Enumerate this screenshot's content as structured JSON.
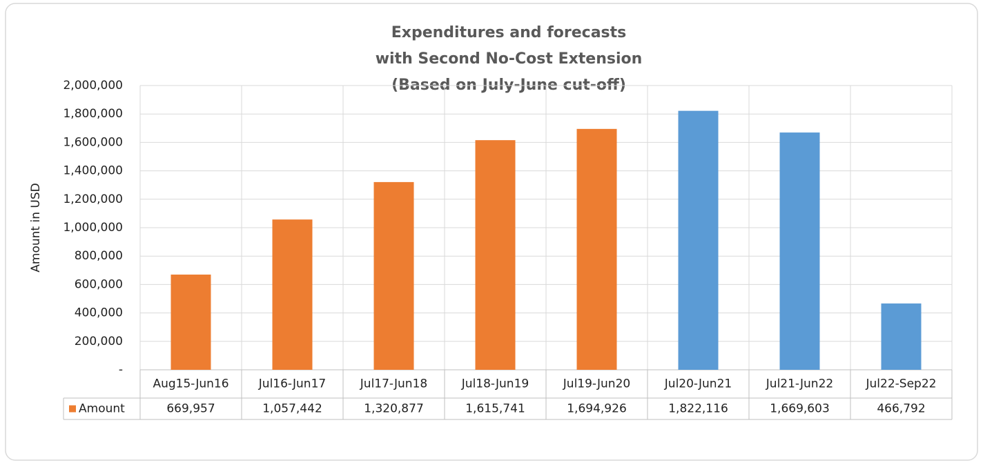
{
  "chart_data": {
    "type": "bar",
    "title": [
      "Expenditures and forecasts",
      "with Second No-Cost Extension",
      "(Based on July-June cut-off)"
    ],
    "y_label": "Amount in USD",
    "categories": [
      "Aug15-Jun16",
      "Jul16-Jun17",
      "Jul17-Jun18",
      "Jul18-Jun19",
      "Jul19-Jun20",
      "Jul20-Jun21",
      "Jul21-Jun22",
      "Jul22-Sep22"
    ],
    "series": [
      {
        "name": "Amount",
        "color": "#ed7d31",
        "values": [
          669957,
          1057442,
          1320877,
          1615741,
          1694926,
          1822116,
          1669603,
          466792
        ],
        "value_labels": [
          "669,957",
          "1,057,442",
          "1,320,877",
          "1,615,741",
          "1,694,926",
          "1,822,116",
          "1,669,603",
          "466,792"
        ],
        "colors": [
          "#ed7d31",
          "#ed7d31",
          "#ed7d31",
          "#ed7d31",
          "#ed7d31",
          "#5b9bd5",
          "#5b9bd5",
          "#5b9bd5"
        ]
      }
    ],
    "ylim": [
      0,
      2000000
    ],
    "yticks": [
      {
        "value": 0,
        "label": "-"
      },
      {
        "value": 200000,
        "label": "200,000"
      },
      {
        "value": 400000,
        "label": "400,000"
      },
      {
        "value": 600000,
        "label": "600,000"
      },
      {
        "value": 800000,
        "label": "800,000"
      },
      {
        "value": 1000000,
        "label": "1,000,000"
      },
      {
        "value": 1200000,
        "label": "1,200,000"
      },
      {
        "value": 1400000,
        "label": "1,400,000"
      },
      {
        "value": 1600000,
        "label": "1,600,000"
      },
      {
        "value": 1800000,
        "label": "1,800,000"
      },
      {
        "value": 2000000,
        "label": "2,000,000"
      }
    ],
    "grid": true
  }
}
